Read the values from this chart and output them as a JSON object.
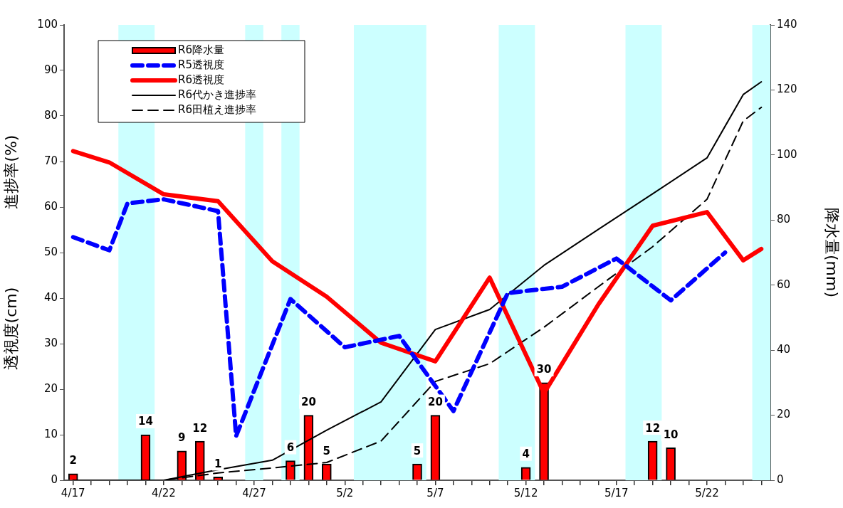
{
  "chart_data": {
    "type": "line",
    "ylabel": "透視度(cm)　　　　　進捗率(%)",
    "y2label": "降水量(mm)",
    "xlim": [
      "--04-16T12:00",
      "--05-25T12:00"
    ],
    "xticks": [
      {
        "value": "--04-17",
        "label": "4/17"
      },
      {
        "value": "--04-18",
        "label": null
      },
      {
        "value": "--04-19",
        "label": null
      },
      {
        "value": "--04-20",
        "label": null
      },
      {
        "value": "--04-21",
        "label": null
      },
      {
        "value": "--04-22",
        "label": "4/22"
      },
      {
        "value": "--04-23",
        "label": null
      },
      {
        "value": "--04-24",
        "label": null
      },
      {
        "value": "--04-25",
        "label": null
      },
      {
        "value": "--04-26",
        "label": null
      },
      {
        "value": "--04-27",
        "label": "4/27"
      },
      {
        "value": "--04-28",
        "label": null
      },
      {
        "value": "--04-29",
        "label": null
      },
      {
        "value": "--04-30",
        "label": null
      },
      {
        "value": "--05-01",
        "label": null
      },
      {
        "value": "--05-02",
        "label": "5/2"
      },
      {
        "value": "--05-03",
        "label": null
      },
      {
        "value": "--05-04",
        "label": null
      },
      {
        "value": "--05-05",
        "label": null
      },
      {
        "value": "--05-06",
        "label": null
      },
      {
        "value": "--05-07",
        "label": "5/7"
      },
      {
        "value": "--05-08",
        "label": null
      },
      {
        "value": "--05-09",
        "label": null
      },
      {
        "value": "--05-10",
        "label": null
      },
      {
        "value": "--05-11",
        "label": null
      },
      {
        "value": "--05-12",
        "label": "5/12"
      },
      {
        "value": "--05-13",
        "label": null
      },
      {
        "value": "--05-14",
        "label": null
      },
      {
        "value": "--05-15",
        "label": null
      },
      {
        "value": "--05-16",
        "label": null
      },
      {
        "value": "--05-17",
        "label": "5/17"
      },
      {
        "value": "--05-18",
        "label": null
      },
      {
        "value": "--05-19",
        "label": null
      },
      {
        "value": "--05-20",
        "label": null
      },
      {
        "value": "--05-21",
        "label": null
      },
      {
        "value": "--05-22",
        "label": "5/22"
      },
      {
        "value": "--05-23",
        "label": null
      },
      {
        "value": "--05-24",
        "label": null
      },
      {
        "value": "--05-25",
        "label": null
      }
    ],
    "ylim": [
      0,
      100
    ],
    "yticks": [
      0,
      10,
      20,
      30,
      40,
      50,
      60,
      70,
      80,
      90,
      100
    ],
    "y2lim": [
      0,
      140
    ],
    "y2ticks": [
      0,
      20,
      40,
      60,
      80,
      100,
      120,
      140
    ],
    "grid": false,
    "legend": "top left",
    "marker": "none",
    "bands": [
      {
        "axis": "x",
        "from": "--04-19T12:00",
        "to": "--04-21T12:00",
        "color": "#ccffff"
      },
      {
        "axis": "x",
        "from": "--04-26T12:00",
        "to": "--04-27T12:00",
        "color": "#ccffff"
      },
      {
        "axis": "x",
        "from": "--04-28T12:00",
        "to": "--04-29T12:00",
        "color": "#ccffff"
      },
      {
        "axis": "x",
        "from": "--05-02T12:00",
        "to": "--05-06T12:00",
        "color": "#ccffff"
      },
      {
        "axis": "x",
        "from": "--05-10T12:00",
        "to": "--05-12T12:00",
        "color": "#ccffff"
      },
      {
        "axis": "x",
        "from": "--05-17T12:00",
        "to": "--05-19T12:00",
        "color": "#ccffff"
      },
      {
        "axis": "x",
        "from": "--05-24T12:00",
        "to": "--05-25T12:00",
        "color": "#ccffff"
      }
    ],
    "series": [
      {
        "name": "R6降水量",
        "type": "bar",
        "axis": "y2",
        "color": "#ff0000",
        "data_labels": true,
        "x": [
          "--04-17",
          "--04-21",
          "--04-23",
          "--04-24",
          "--04-25",
          "--04-29",
          "--04-30",
          "--05-01",
          "--05-06",
          "--05-07",
          "--05-12",
          "--05-13",
          "--05-19",
          "--05-20"
        ],
        "values": [
          2,
          14,
          9,
          12,
          1,
          6,
          20,
          5,
          5,
          20,
          4,
          30,
          12,
          10
        ]
      },
      {
        "name": "R5透視度",
        "line_style": "dashed",
        "color": "#0000ff",
        "x": [
          "--04-17",
          "--04-19",
          "--04-20",
          "--04-22",
          "--04-25",
          "--04-26",
          "--04-29",
          "--05-02",
          "--05-05",
          "--05-08",
          "--05-11",
          "--05-14",
          "--05-17",
          "--05-20",
          "--05-23"
        ],
        "values": [
          53.4,
          50.5,
          60.8,
          61.7,
          59.1,
          9.7,
          39.8,
          29.2,
          31.7,
          15.2,
          41.1,
          42.5,
          48.7,
          39.5,
          50
        ]
      },
      {
        "name": "R6透視度",
        "line_style": "solid",
        "color": "#ff0000",
        "x": [
          "--04-17",
          "--04-19",
          "--04-22",
          "--04-25",
          "--04-28",
          "--05-01",
          "--05-04",
          "--05-07",
          "--05-10",
          "--05-13",
          "--05-16",
          "--05-19",
          "--05-22",
          "--05-24",
          "--05-25"
        ],
        "values": [
          72.3,
          69.8,
          62.8,
          61.3,
          48.1,
          40.3,
          30.2,
          26.1,
          44.5,
          19.1,
          38.6,
          55.9,
          58.9,
          48.3,
          50.8
        ]
      },
      {
        "name": "R6代かき進捗率",
        "line_style": "solid",
        "color": "#000000",
        "x": [
          "--04-17",
          "--04-19",
          "--04-22",
          "--04-25",
          "--04-28",
          "--05-01",
          "--05-04",
          "--05-07",
          "--05-10",
          "--05-13",
          "--05-16",
          "--05-19",
          "--05-22",
          "--05-24",
          "--05-25"
        ],
        "values": [
          0,
          0,
          0,
          2.3,
          4.4,
          11,
          17.2,
          33.1,
          37.5,
          47.2,
          55.1,
          62.9,
          70.8,
          84.7,
          87.5
        ]
      },
      {
        "name": "R6田植え進捗率",
        "line_style": "dashed",
        "color": "#000000",
        "x": [
          "--04-17",
          "--04-19",
          "--04-22",
          "--04-25",
          "--04-28",
          "--05-01",
          "--05-04",
          "--05-07",
          "--05-10",
          "--05-13",
          "--05-16",
          "--05-19",
          "--05-22",
          "--05-24",
          "--05-25"
        ],
        "values": [
          0,
          0,
          0,
          1.6,
          2.7,
          3.9,
          8.6,
          21.7,
          25.6,
          33.6,
          42.5,
          51.3,
          61.7,
          78.9,
          81.9
        ]
      }
    ]
  }
}
